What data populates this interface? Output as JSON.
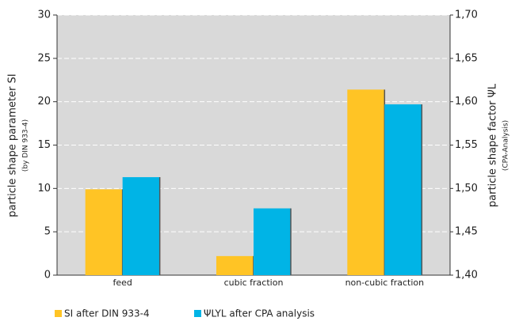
{
  "chart_data": {
    "type": "bar",
    "categories": [
      "feed",
      "cubic fraction",
      "non-cubic fraction"
    ],
    "series": [
      {
        "name": "SI after DIN 933-4",
        "color": "#ffc425",
        "values": [
          9.9,
          2.2,
          21.4
        ]
      },
      {
        "name": "ΨLYL after CPA analysis",
        "color": "#00b4e6",
        "values": [
          1.513,
          1.477,
          1.597
        ],
        "axis": "y2"
      }
    ],
    "ylabel": "particle shape parameter  SI",
    "ylabel_note": "(by DIN 933-4)",
    "y2label": "particle shape factor  ΨL",
    "y2label_note": "(CPA-Analysis)",
    "ylim": [
      0,
      30
    ],
    "yticks": [
      0,
      5,
      10,
      15,
      20,
      25,
      30
    ],
    "y2lim": [
      1.4,
      1.7
    ],
    "y2ticks": [
      {
        "value": 1.4,
        "label": "1,40"
      },
      {
        "value": 1.45,
        "label": "1,45"
      },
      {
        "value": 1.5,
        "label": "1,50"
      },
      {
        "value": 1.55,
        "label": "1,55"
      },
      {
        "value": 1.6,
        "label": "1,60"
      },
      {
        "value": 1.65,
        "label": "1,65"
      },
      {
        "value": 1.7,
        "label": "1,70"
      }
    ],
    "grid": true,
    "legend": "bottom"
  }
}
